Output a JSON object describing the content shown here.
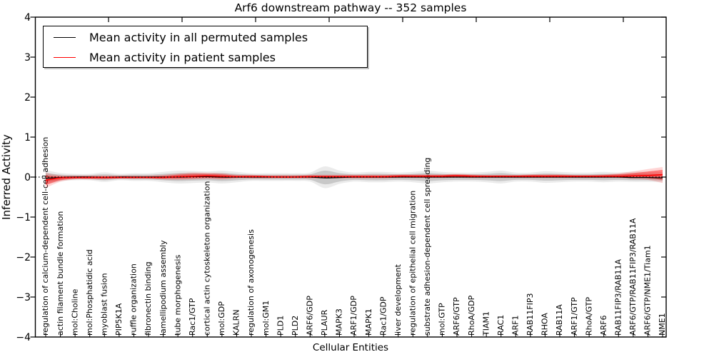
{
  "chart_data": {
    "type": "line",
    "title": "Arf6 downstream pathway -- 352 samples",
    "xlabel": "Cellular Entities",
    "ylabel": "Inferred Activity",
    "ylim": [
      -4,
      4
    ],
    "yticks": [
      "4",
      "3",
      "2",
      "1",
      "0",
      "−1",
      "−2",
      "−3",
      "−4"
    ],
    "ytick_values": [
      4,
      3,
      2,
      1,
      0,
      -1,
      -2,
      -3,
      -4
    ],
    "grid": false,
    "legend_position": "upper left",
    "zero_line": true,
    "colors": {
      "permuted": "#000000",
      "patient": "#ff0000",
      "permuted_band": "#000000",
      "patient_band": "#ff0000"
    },
    "categories": [
      "regulation of calcium-dependent cell-cell adhesion",
      "actin filament bundle formation",
      "mol:Choline",
      "mol:Phosphatidic acid",
      "myoblast fusion",
      "PIP5K1A",
      "ruffle organization",
      "fibronectin binding",
      "lamellipodium assembly",
      "tube morphogenesis",
      "Rac1/GTP",
      "cortical actin cytoskeleton organization",
      "mol:GDP",
      "KALRN",
      "regulation of axonogenesis",
      "mol:GM1",
      "PLD1",
      "PLD2",
      "ARF6/GDP",
      "PLAUR",
      "MAPK3",
      "ARF1/GDP",
      "MAPK1",
      "Rac1/GDP",
      "liver development",
      "regulation of epithelial cell migration",
      "substrate adhesion-dependent cell spreading",
      "mol:GTP",
      "ARF6/GTP",
      "RhoA/GDP",
      "TIAM1",
      "RAC1",
      "ARF1",
      "RAB11FIP3",
      "RHOA",
      "RAB11A",
      "ARF1/GTP",
      "RhoA/GTP",
      "ARF6",
      "RAB11FIP3/RAB11A",
      "ARF6/GTP/RAB11FIP3/RAB11A",
      "ARF6/GTP/NME1/Tiam1",
      "NME1"
    ],
    "series": [
      {
        "name": "Mean activity in all permuted samples",
        "color": "#000000",
        "values": [
          -0.03,
          -0.01,
          0,
          0,
          -0.01,
          0,
          0,
          0,
          0,
          0,
          0.01,
          0.01,
          0,
          0,
          0,
          0,
          0,
          0,
          0,
          -0.02,
          -0.01,
          0,
          0,
          0,
          0,
          0,
          0,
          0,
          0,
          0,
          0,
          0,
          0,
          0,
          0,
          0,
          0,
          0,
          0,
          0,
          -0.01,
          -0.01,
          -0.02
        ],
        "band_upper": [
          0.1,
          0.06,
          0.05,
          0.05,
          0.07,
          0.05,
          0.06,
          0.06,
          0.08,
          0.1,
          0.1,
          0.09,
          0.1,
          0.08,
          0.06,
          0.06,
          0.06,
          0.06,
          0.07,
          0.16,
          0.1,
          0.07,
          0.08,
          0.08,
          0.07,
          0.08,
          0.1,
          0.08,
          0.07,
          0.07,
          0.08,
          0.1,
          0.07,
          0.07,
          0.09,
          0.08,
          0.07,
          0.07,
          0.08,
          0.07,
          0.08,
          0.08,
          0.07
        ],
        "band_lower": [
          -0.13,
          -0.07,
          -0.05,
          -0.05,
          -0.08,
          -0.05,
          -0.06,
          -0.06,
          -0.08,
          -0.1,
          -0.09,
          -0.08,
          -0.1,
          -0.08,
          -0.06,
          -0.06,
          -0.06,
          -0.06,
          -0.07,
          -0.18,
          -0.11,
          -0.07,
          -0.08,
          -0.08,
          -0.07,
          -0.08,
          -0.1,
          -0.08,
          -0.07,
          -0.07,
          -0.08,
          -0.1,
          -0.07,
          -0.07,
          -0.09,
          -0.08,
          -0.07,
          -0.07,
          -0.08,
          -0.07,
          -0.08,
          -0.08,
          -0.09
        ]
      },
      {
        "name": "Mean activity in patient samples",
        "color": "#ff0000",
        "values": [
          -0.08,
          -0.02,
          -0.01,
          -0.01,
          -0.01,
          -0.01,
          -0.01,
          -0.01,
          -0.01,
          0.01,
          0.02,
          0.03,
          0.02,
          0.01,
          0.01,
          0.01,
          0,
          0,
          0.01,
          0.01,
          0.01,
          0.01,
          0.01,
          0.01,
          0.02,
          0.02,
          0.02,
          0.02,
          0.03,
          0.02,
          0.02,
          0.02,
          0.02,
          0.02,
          0.02,
          0.02,
          0.02,
          0.02,
          0.02,
          0.02,
          0.03,
          0.04,
          0.06
        ],
        "band_upper": [
          0.04,
          0.02,
          0.02,
          0.02,
          0.02,
          0.02,
          0.02,
          0.02,
          0.03,
          0.06,
          0.08,
          0.08,
          0.07,
          0.04,
          0.04,
          0.03,
          0.03,
          0.03,
          0.04,
          0.04,
          0.04,
          0.04,
          0.04,
          0.04,
          0.05,
          0.05,
          0.05,
          0.05,
          0.06,
          0.05,
          0.04,
          0.04,
          0.04,
          0.05,
          0.05,
          0.05,
          0.04,
          0.04,
          0.05,
          0.07,
          0.1,
          0.14,
          0.18
        ],
        "band_lower": [
          -0.2,
          -0.08,
          -0.04,
          -0.04,
          -0.04,
          -0.03,
          -0.03,
          -0.03,
          -0.04,
          -0.04,
          -0.03,
          -0.02,
          -0.03,
          -0.02,
          -0.02,
          -0.02,
          -0.02,
          -0.02,
          -0.02,
          -0.02,
          -0.02,
          -0.02,
          -0.02,
          -0.02,
          -0.01,
          -0.01,
          -0.01,
          -0.01,
          0,
          -0.01,
          -0.01,
          -0.01,
          -0.01,
          -0.01,
          -0.01,
          -0.01,
          -0.01,
          -0.01,
          -0.01,
          -0.01,
          -0.02,
          -0.03,
          -0.07
        ]
      }
    ]
  }
}
